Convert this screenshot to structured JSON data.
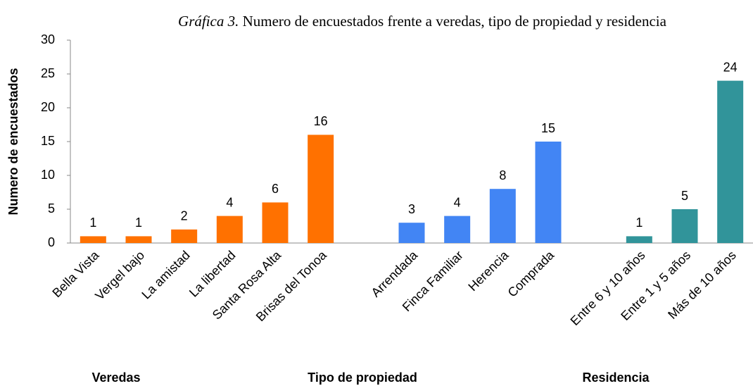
{
  "chart_data": {
    "type": "bar",
    "title_label": "Gráfica 3.",
    "title": "Numero de encuestados frente a veredas, tipo de propiedad y residencia",
    "y_label": "Numero de encuestados",
    "categories": [
      "Bella Vista",
      "Vergel bajo",
      "La amistad",
      "La libertad",
      "Santa Rosa Alta",
      "Brisas del Tonoa",
      null,
      "Arrendada",
      "Finca Familiar",
      "Herencia",
      "Comprada",
      null,
      "Entre 6 y 10 años",
      "Entre 1 y 5 años",
      "Más de 10 años"
    ],
    "values": [
      1,
      1,
      2,
      4,
      6,
      16,
      null,
      3,
      4,
      8,
      15,
      null,
      1,
      5,
      24
    ],
    "colors": [
      "#ff7100",
      "#ff7100",
      "#ff7100",
      "#ff7100",
      "#ff7100",
      "#ff7100",
      null,
      "#4285f4",
      "#4285f4",
      "#4285f4",
      "#4285f4",
      null,
      "#31949a",
      "#31949a",
      "#31949a"
    ],
    "group_labels": [
      "Veredas",
      "Tipo de propiedad",
      "Residencia"
    ],
    "ylim": [
      0,
      30
    ],
    "yticks": [
      0,
      5,
      10,
      15,
      20,
      25,
      30
    ],
    "grid": false
  }
}
